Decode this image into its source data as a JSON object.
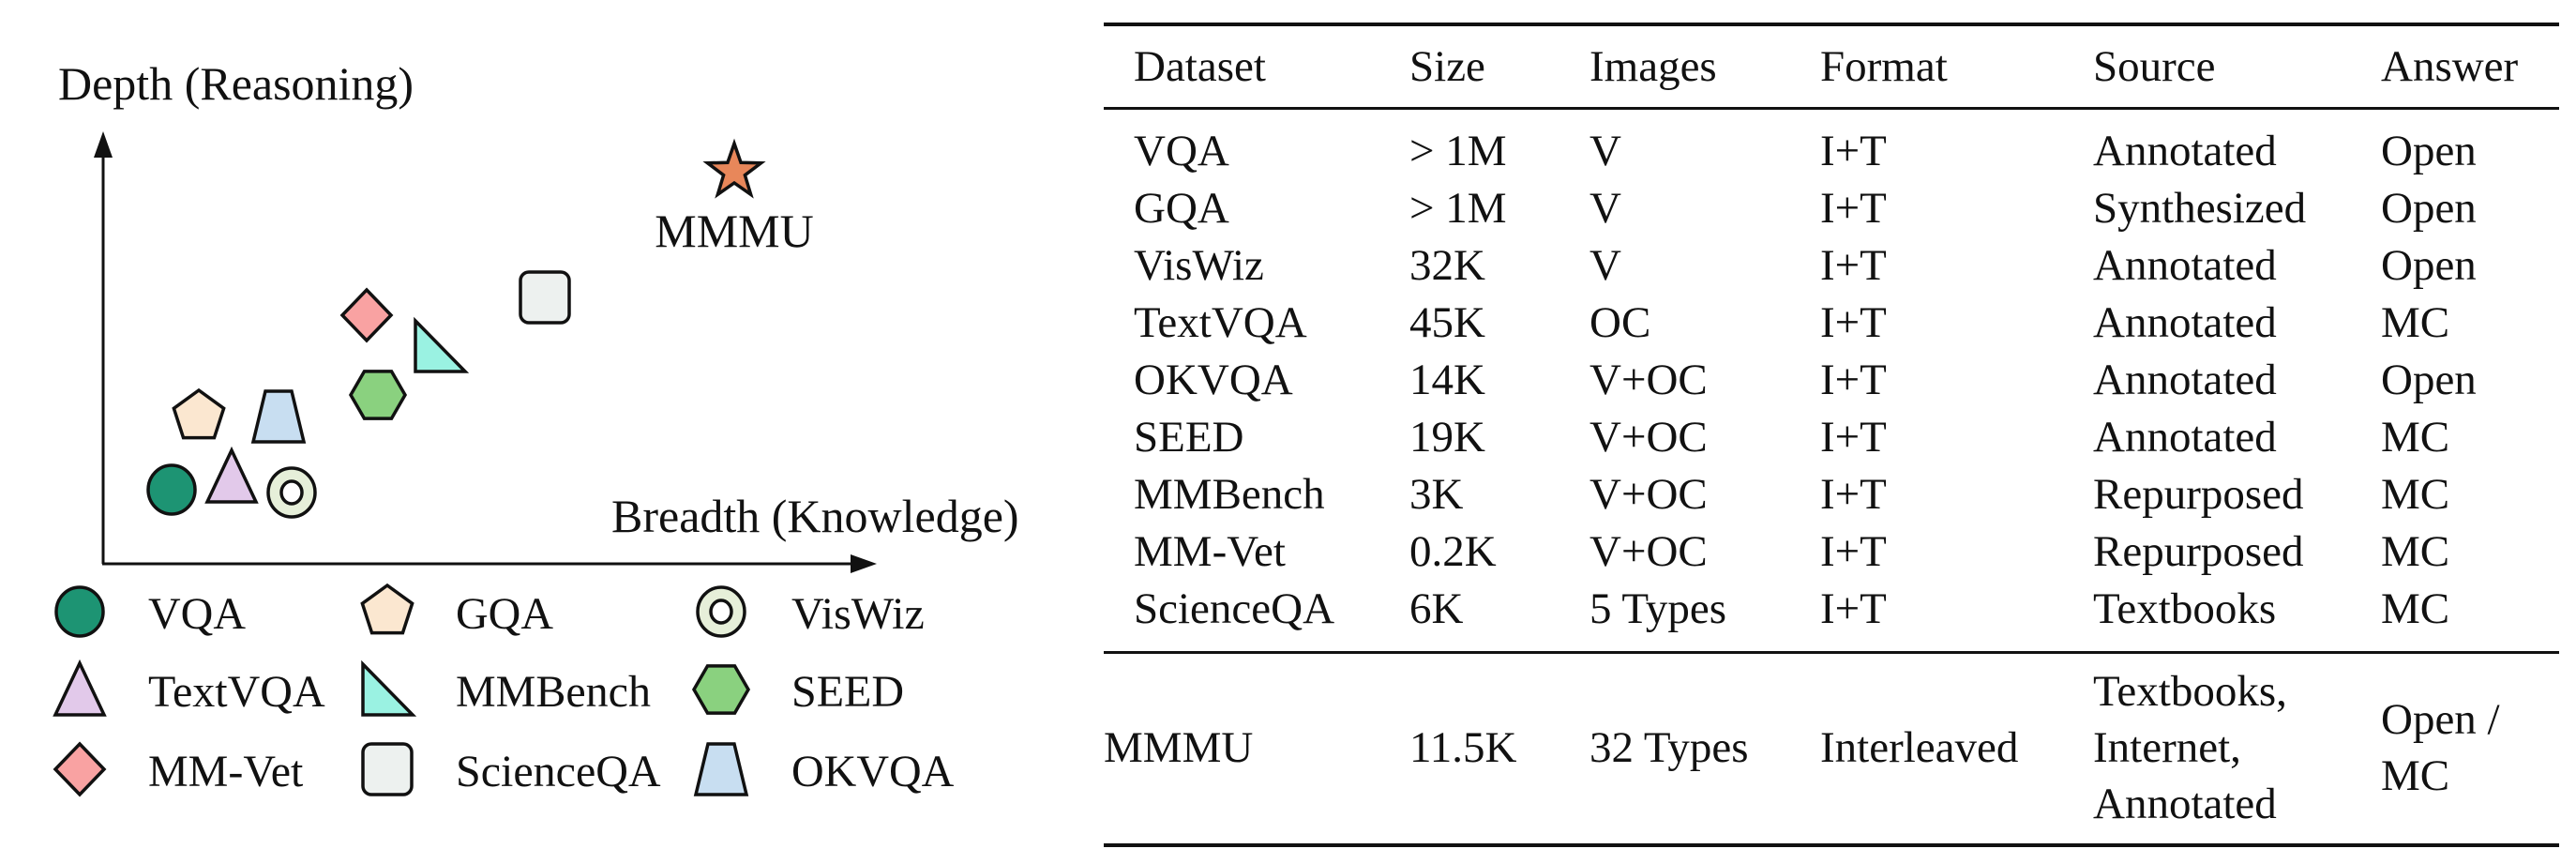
{
  "diagram": {
    "y_axis_label": "Depth (Reasoning)",
    "x_axis_label": "Breadth (Knowledge)",
    "highlight_label": "MMMU",
    "markers": [
      {
        "name": "VQA",
        "shape": "circle",
        "color": "#1d9473"
      },
      {
        "name": "GQA",
        "shape": "pentagon",
        "color": "#fbe7d0"
      },
      {
        "name": "VisWiz",
        "shape": "ring",
        "color": "#e6efd9"
      },
      {
        "name": "TextVQA",
        "shape": "triangle",
        "color": "#e2c9ea"
      },
      {
        "name": "MMBench",
        "shape": "right-triangle",
        "color": "#9af2e2"
      },
      {
        "name": "SEED",
        "shape": "hexagon",
        "color": "#8ad17f"
      },
      {
        "name": "MM-Vet",
        "shape": "diamond",
        "color": "#f9a2a2"
      },
      {
        "name": "ScienceQA",
        "shape": "rounded-square",
        "color": "#edf1ef"
      },
      {
        "name": "OKVQA",
        "shape": "trapezoid",
        "color": "#c8def1"
      },
      {
        "name": "MMMU",
        "shape": "star",
        "color": "#e8875a"
      }
    ],
    "legend": [
      "VQA",
      "GQA",
      "VisWiz",
      "TextVQA",
      "MMBench",
      "SEED",
      "MM-Vet",
      "ScienceQA",
      "OKVQA"
    ]
  },
  "table": {
    "headers": [
      "Dataset",
      "Size",
      "Images",
      "Format",
      "Source",
      "Answer"
    ],
    "rows": [
      [
        "VQA",
        "> 1M",
        "V",
        "I+T",
        "Annotated",
        "Open"
      ],
      [
        "GQA",
        "> 1M",
        "V",
        "I+T",
        "Synthesized",
        "Open"
      ],
      [
        "VisWiz",
        "32K",
        "V",
        "I+T",
        "Annotated",
        "Open"
      ],
      [
        "TextVQA",
        "45K",
        "OC",
        "I+T",
        "Annotated",
        "MC"
      ],
      [
        "OKVQA",
        "14K",
        "V+OC",
        "I+T",
        "Annotated",
        "Open"
      ],
      [
        "SEED",
        "19K",
        "V+OC",
        "I+T",
        "Annotated",
        "MC"
      ],
      [
        "MMBench",
        "3K",
        "V+OC",
        "I+T",
        "Repurposed",
        "MC"
      ],
      [
        "MM-Vet",
        "0.2K",
        "V+OC",
        "I+T",
        "Repurposed",
        "MC"
      ],
      [
        "ScienceQA",
        "6K",
        "5 Types",
        "I+T",
        "Textbooks",
        "MC"
      ]
    ],
    "final_row": {
      "dataset": "MMMU",
      "size": "11.5K",
      "images": "32 Types",
      "format": "Interleaved",
      "source": [
        "Textbooks,",
        "Internet,",
        "Annotated"
      ],
      "answer": [
        "Open /",
        "MC"
      ]
    }
  }
}
